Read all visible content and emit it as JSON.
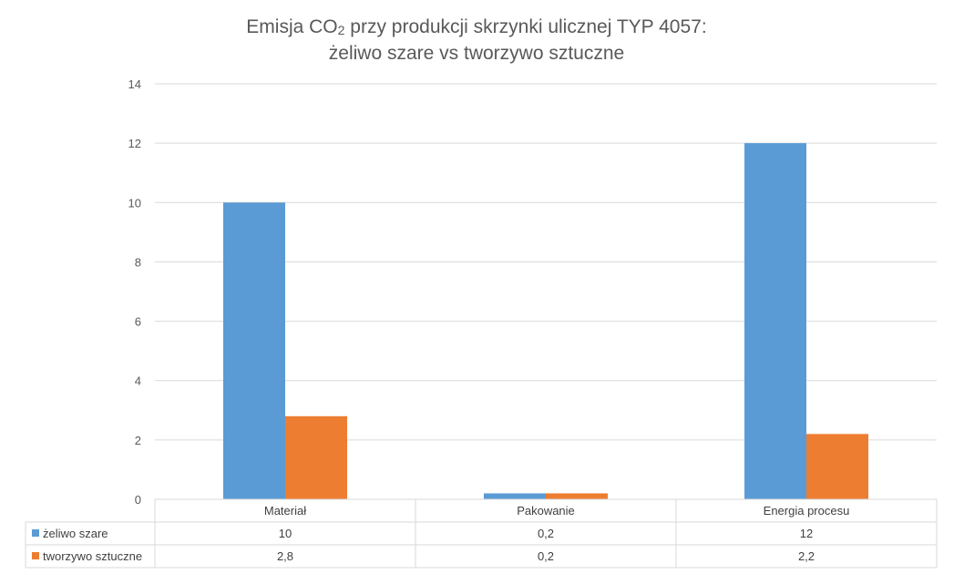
{
  "chart_data": {
    "type": "bar",
    "title_line1": "Emisja CO",
    "title_sub": "2",
    "title_line1_rest": "  przy produkcji skrzynki ulicznej TYP 4057:",
    "title_line2": "żeliwo szare vs tworzywo sztuczne",
    "categories": [
      "Materiał",
      "Pakowanie",
      "Energia procesu"
    ],
    "series": [
      {
        "name": "żeliwo szare",
        "color": "#5b9bd5",
        "values": [
          10,
          0.2,
          12
        ],
        "labels": [
          "10",
          "0,2",
          "12"
        ]
      },
      {
        "name": "tworzywo sztuczne",
        "color": "#ed7d31",
        "values": [
          2.8,
          0.2,
          2.2
        ],
        "labels": [
          "2,8",
          "0,2",
          "2,2"
        ]
      }
    ],
    "ylim": [
      0,
      14
    ],
    "yticks": [
      "0",
      "2",
      "4",
      "6",
      "8",
      "10",
      "12",
      "14"
    ],
    "grid": true,
    "legend": "data-table"
  }
}
